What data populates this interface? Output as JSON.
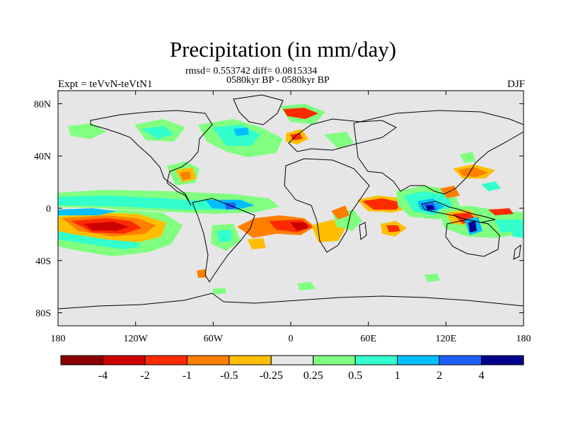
{
  "title": "Precipitation (in mm/day)",
  "stats_line": "rmsd= 0.553742 diff= 0.0815334",
  "period_line": "0580kyr BP - 0580kyr BP",
  "experiment_label": "Expt = teVvN-teVtN1",
  "season_label": "DJF",
  "map": {
    "projection": "cylindrical-equidistant",
    "lon_range": [
      -180,
      180
    ],
    "lat_range": [
      -90,
      90
    ],
    "x_tick_labels": [
      "180",
      "120W",
      "60W",
      "0",
      "60E",
      "120E",
      "180"
    ],
    "y_tick_labels": [
      "80N",
      "40N",
      "0",
      "40S",
      "80S"
    ],
    "land_sea_mask_color": "#e6e6e6"
  },
  "colorbar": {
    "labels": [
      "-4",
      "-2",
      "-1",
      "-0.5",
      "-0.25",
      "0.25",
      "0.5",
      "1",
      "2",
      "4"
    ],
    "colors": [
      "#8b0000",
      "#cd0000",
      "#ff2a00",
      "#ff7f00",
      "#ffbf00",
      "#e6e6e6",
      "#80ff80",
      "#33ffcc",
      "#00bfff",
      "#1f5fff",
      "#00008b"
    ]
  }
}
